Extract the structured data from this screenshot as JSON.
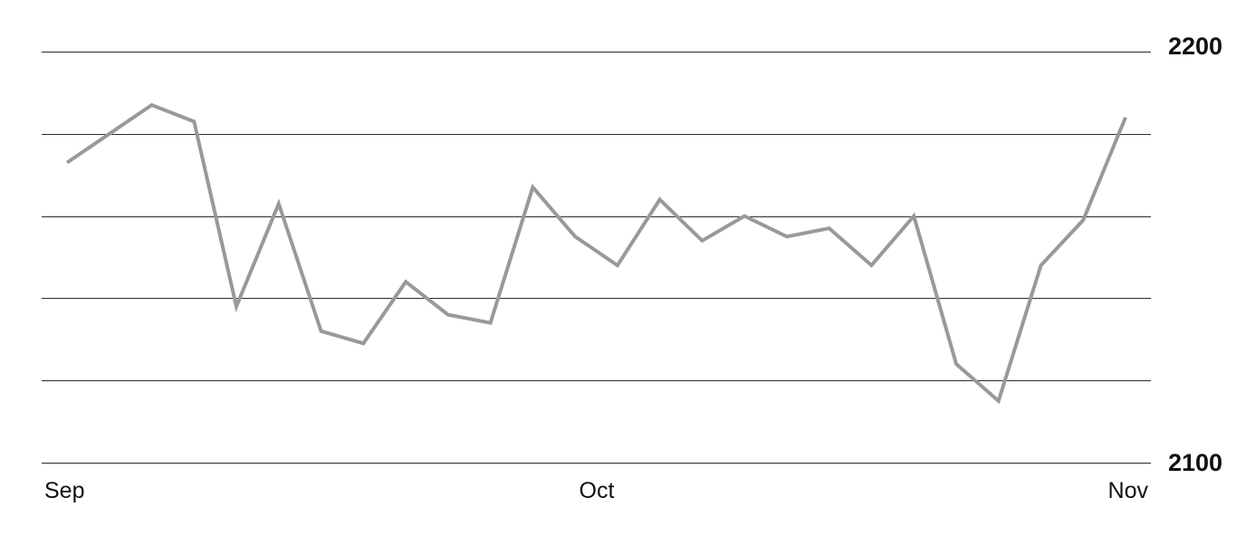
{
  "chart_data": {
    "type": "line",
    "title": "",
    "xlabel": "",
    "ylabel": "",
    "x_tick_labels": [
      "Sep",
      "Oct",
      "Nov"
    ],
    "y_tick_labels": [
      "2200",
      "2100"
    ],
    "ylim": [
      2100,
      2200
    ],
    "gridlines": [
      2200,
      2180,
      2160,
      2140,
      2120,
      2100
    ],
    "grid": true,
    "line_color": "#999999",
    "series": [
      {
        "values": [
          2173,
          2180,
          2187,
          2183,
          2138,
          2163,
          2132,
          2129,
          2144,
          2136,
          2134,
          2167,
          2155,
          2148,
          2164,
          2154,
          2160,
          2155,
          2157,
          2148,
          2160,
          2124,
          2115,
          2148,
          2159,
          2184
        ]
      }
    ]
  }
}
